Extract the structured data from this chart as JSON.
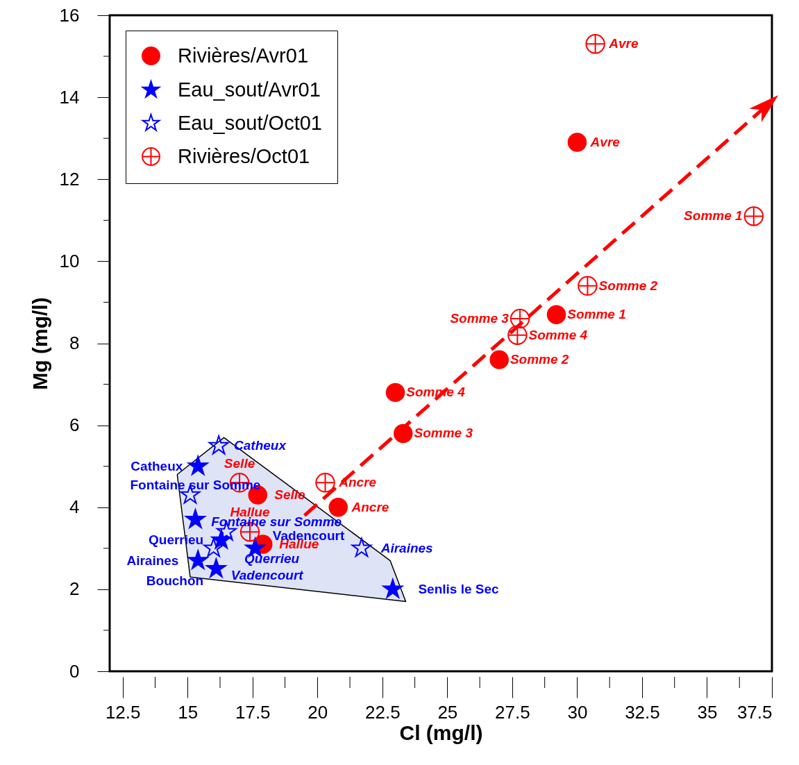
{
  "chart_data": {
    "type": "scatter",
    "xlabel": "Cl (mg/l)",
    "ylabel": "Mg (mg/l)",
    "xlim": [
      12,
      37.5
    ],
    "ylim": [
      0,
      16
    ],
    "xticks": [
      {
        "value": 12.5,
        "label": "12.5"
      },
      {
        "value": 13.75,
        "label": null
      },
      15,
      {
        "value": 16.25,
        "label": null
      },
      {
        "value": 17.5,
        "label": "17.5"
      },
      {
        "value": 18.75,
        "label": null
      },
      20,
      {
        "value": 21.25,
        "label": null
      },
      {
        "value": 22.5,
        "label": "22.5"
      },
      {
        "value": 23.75,
        "label": null
      },
      25,
      {
        "value": 26.25,
        "label": null
      },
      {
        "value": 27.5,
        "label": "27.5"
      },
      {
        "value": 28.75,
        "label": null
      },
      30,
      {
        "value": 31.25,
        "label": null
      },
      {
        "value": 32.5,
        "label": "32.5"
      },
      {
        "value": 33.75,
        "label": null
      },
      35,
      {
        "value": 36.25,
        "label": null
      },
      {
        "value": 37.5,
        "label": "37.5"
      }
    ],
    "yticks": [
      0,
      {
        "value": 1,
        "label": null
      },
      2,
      {
        "value": 3,
        "label": null
      },
      4,
      {
        "value": 5,
        "label": null
      },
      6,
      {
        "value": 7,
        "label": null
      },
      8,
      {
        "value": 9,
        "label": null
      },
      10,
      {
        "value": 11,
        "label": null
      },
      12,
      {
        "value": 13,
        "label": null
      },
      14,
      {
        "value": 15,
        "label": null
      },
      16
    ],
    "grid": false,
    "legend": "top left",
    "series": [
      {
        "name": "Rivières/Avr01",
        "type": "scatter",
        "marker": "circle",
        "color": "#ff0000",
        "x": [
          30.0,
          29.2,
          27.0,
          23.0,
          23.3,
          20.8,
          17.7,
          17.9
        ],
        "values": [
          12.9,
          8.7,
          7.6,
          6.8,
          5.8,
          4.0,
          4.3,
          3.1
        ]
      },
      {
        "name": "Eau_sout/Avr01",
        "type": "scatter",
        "marker": "star",
        "color": "#0000ff",
        "x": [
          15.4,
          15.3,
          16.3,
          17.6,
          15.4,
          16.1,
          22.9
        ],
        "values": [
          5.0,
          3.7,
          3.2,
          3.0,
          2.7,
          2.5,
          2.0
        ]
      },
      {
        "name": "Eau_sout/Oct01",
        "type": "scatter",
        "marker": "star",
        "color": "#0000ff",
        "x": [
          16.2,
          15.1,
          16.5,
          16.0,
          21.7
        ],
        "values": [
          5.5,
          4.3,
          3.4,
          3.0,
          3.0
        ]
      },
      {
        "name": "Rivières/Oct01",
        "type": "scatter",
        "marker": "cross",
        "color": "#ff0000",
        "x": [
          30.7,
          36.8,
          30.4,
          27.8,
          27.7,
          20.3,
          17.0,
          17.4
        ],
        "values": [
          15.3,
          11.1,
          9.4,
          8.6,
          8.2,
          4.6,
          4.6,
          3.4
        ]
      },
      {
        "type": "line",
        "line_style": "dashed",
        "color": "#ff0000",
        "x": [
          19.5,
          37.3
        ],
        "values": [
          3.8,
          13.8
        ]
      },
      {
        "type": "area",
        "color": "#dfe3f6",
        "x": [
          14.6,
          16.4,
          22.8,
          23.4,
          15.1,
          14.6
        ],
        "values": [
          4.8,
          5.7,
          2.7,
          1.7,
          2.3,
          4.8
        ]
      }
    ],
    "annotations": [
      {
        "text": "Avre",
        "x": 30.7,
        "y": 15.3
      },
      {
        "text": "Avre",
        "x": 30.0,
        "y": 12.9
      },
      {
        "text": "Somme 1",
        "x": 36.8,
        "y": 11.1
      },
      {
        "text": "Somme 2",
        "x": 30.4,
        "y": 9.4
      },
      {
        "text": "Somme 1",
        "x": 29.2,
        "y": 8.7
      },
      {
        "text": "Somme 3",
        "x": 27.8,
        "y": 8.6
      },
      {
        "text": "Somme 4",
        "x": 27.7,
        "y": 8.2
      },
      {
        "text": "Somme 2",
        "x": 27.0,
        "y": 7.6
      },
      {
        "text": "Somme 4",
        "x": 23.0,
        "y": 6.8
      },
      {
        "text": "Somme 3",
        "x": 23.3,
        "y": 5.8
      },
      {
        "text": "Ancre",
        "x": 20.3,
        "y": 4.6
      },
      {
        "text": "Selle",
        "x": 17.7,
        "y": 4.3
      },
      {
        "text": "Ancre",
        "x": 20.8,
        "y": 4.0
      },
      {
        "text": "Selle",
        "x": 17.0,
        "y": 4.6
      },
      {
        "text": "Hallue",
        "x": 17.4,
        "y": 3.4
      },
      {
        "text": "Hallue",
        "x": 17.9,
        "y": 3.1
      },
      {
        "text": "Catheux",
        "x": 16.2,
        "y": 5.5
      },
      {
        "text": "Catheux",
        "x": 15.4,
        "y": 5.0
      },
      {
        "text": "Fontaine sur Somme",
        "x": 15.1,
        "y": 4.3
      },
      {
        "text": "Fontaine sur Somme",
        "x": 15.3,
        "y": 3.7
      },
      {
        "text": "Querrieu",
        "x": 16.5,
        "y": 3.4
      },
      {
        "text": "Querrieu",
        "x": 16.3,
        "y": 3.2
      },
      {
        "text": "Vadencourt",
        "x": 16.0,
        "y": 3.0
      },
      {
        "text": "Vadencourt",
        "x": 17.6,
        "y": 3.0
      },
      {
        "text": "Airaines",
        "x": 15.4,
        "y": 2.7
      },
      {
        "text": "Bouchon",
        "x": 16.1,
        "y": 2.5
      },
      {
        "text": "Senlis le Sec",
        "x": 22.9,
        "y": 2.0
      },
      {
        "text": "Airaines",
        "x": 21.7,
        "y": 3.0
      }
    ]
  }
}
